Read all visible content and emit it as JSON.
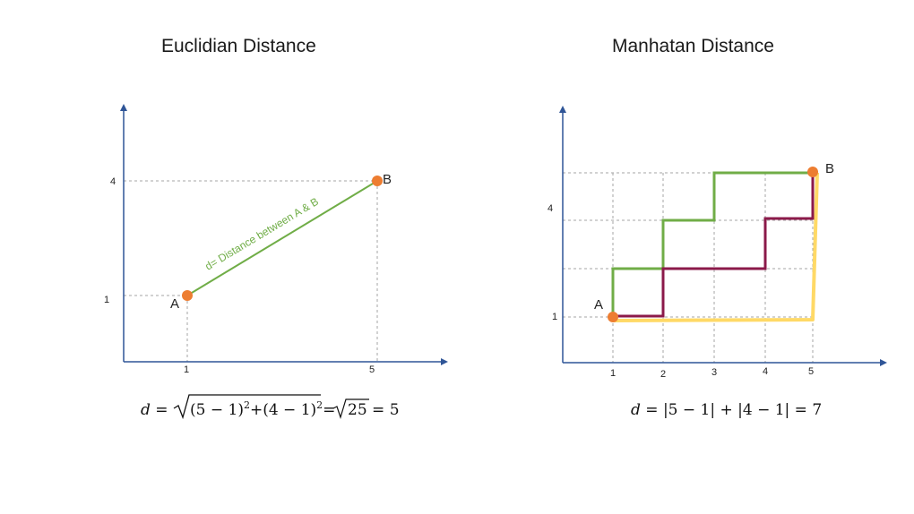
{
  "left": {
    "title": "Euclidian Distance",
    "point_a": "A",
    "point_b": "B",
    "x_ticks": [
      "1",
      "5"
    ],
    "y_ticks": [
      "1",
      "4"
    ],
    "line_label": "d= Distance between A & B",
    "formula": {
      "d": "d",
      "eq": " = ",
      "part1": "(5 − 1)",
      "sup1": "2",
      "plus": "+",
      "part2": "(4 − 1)",
      "sup2": "2",
      "eq2": "= ",
      "sqrt2": "25",
      "result": " = 5"
    }
  },
  "right": {
    "title": "Manhatan Distance",
    "point_a": "A",
    "point_b": "B",
    "x_ticks": [
      "1",
      "2",
      "3",
      "4",
      "5"
    ],
    "y_ticks": [
      "1",
      "4"
    ],
    "formula": {
      "d": "d",
      "rest": " = |5 − 1| + |4 − 1| = 7"
    }
  },
  "colors": {
    "axis": "#2F5597",
    "point": "#ED7D31",
    "euclid_line": "#70AD47",
    "path_green": "#70AD47",
    "path_maroon": "#8B1A4A",
    "path_yellow": "#FFD966",
    "grid": "#A6A6A6"
  }
}
